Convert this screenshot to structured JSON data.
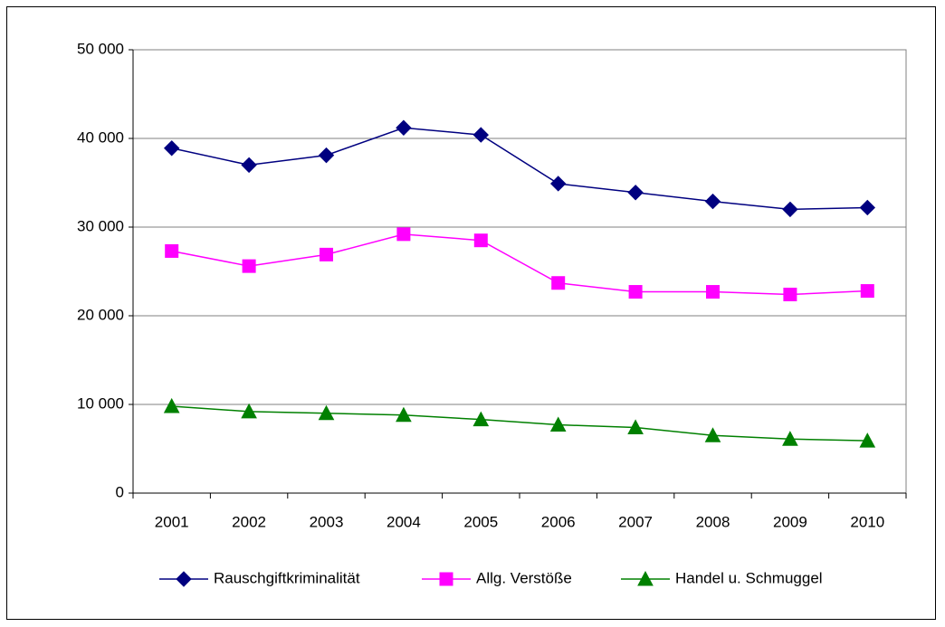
{
  "chart_data": {
    "type": "line",
    "categories": [
      "2001",
      "2002",
      "2003",
      "2004",
      "2005",
      "2006",
      "2007",
      "2008",
      "2009",
      "2010"
    ],
    "series": [
      {
        "name": "Rauschgiftkriminalität",
        "color": "#000080",
        "marker": "diamond",
        "values": [
          38900,
          37000,
          38100,
          41200,
          40400,
          34900,
          33900,
          32900,
          32000,
          32200
        ]
      },
      {
        "name": "Allg. Verstöße",
        "color": "#ff00ff",
        "marker": "square",
        "values": [
          27300,
          25600,
          26900,
          29200,
          28500,
          23700,
          22700,
          22700,
          22400,
          22800
        ]
      },
      {
        "name": "Handel u. Schmuggel",
        "color": "#008000",
        "marker": "triangle",
        "values": [
          9800,
          9200,
          9000,
          8800,
          8300,
          7700,
          7400,
          6500,
          6100,
          5900
        ]
      }
    ],
    "ylim": [
      0,
      50000
    ],
    "yticks": [
      0,
      {
        "value": 10000,
        "label": "10 000"
      },
      {
        "value": 20000,
        "label": "20 000"
      },
      {
        "value": 30000,
        "label": "30 000"
      },
      {
        "value": 40000,
        "label": "40 000"
      },
      {
        "value": 50000,
        "label": "50 000"
      }
    ],
    "grid": true,
    "legend": "bottom"
  }
}
